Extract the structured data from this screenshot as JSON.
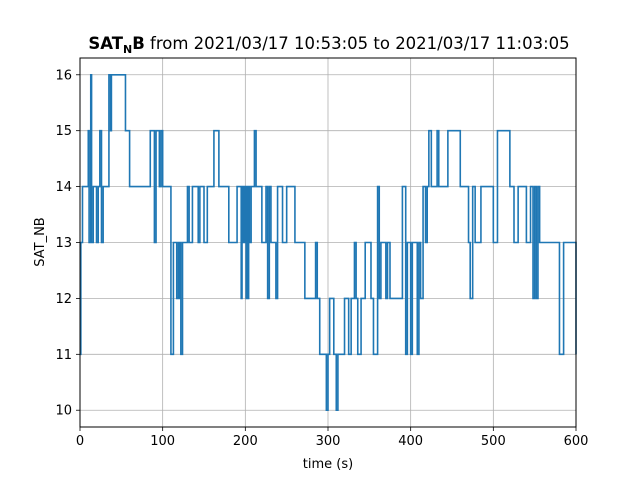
{
  "chart_data": {
    "type": "line",
    "title": {
      "bold": "SAT",
      "bold_sub": "N",
      "bold_tail": "B",
      "rest": " from 2021/03/17 10:53:05 to 2021/03/17 11:03:05"
    },
    "xlabel": "time (s)",
    "ylabel": "SAT_NB",
    "xlim": [
      0,
      600
    ],
    "ylim": [
      9.7,
      16.3
    ],
    "xticks": [
      0,
      100,
      200,
      300,
      400,
      500,
      600
    ],
    "yticks": [
      10,
      11,
      12,
      13,
      14,
      15,
      16
    ],
    "grid": true,
    "line_color": "#1f77b4",
    "series": [
      {
        "step": "post",
        "x": [
          0,
          1,
          3,
          6,
          10,
          11,
          13,
          14,
          16,
          18,
          20,
          22,
          24,
          26,
          28,
          29,
          31,
          33,
          35,
          37,
          38,
          40,
          43,
          48,
          50,
          55,
          60,
          65,
          66,
          78,
          85,
          90,
          92,
          96,
          98,
          100,
          105,
          110,
          113,
          117,
          119,
          120,
          121,
          122,
          124,
          126,
          130,
          132,
          136,
          140,
          143,
          145,
          147,
          150,
          154,
          158,
          162,
          168,
          172,
          174,
          180,
          185,
          190,
          194,
          195,
          196,
          197,
          198,
          199,
          200,
          201,
          202,
          203,
          204,
          205,
          207,
          211,
          213,
          215,
          217,
          220,
          225,
          227,
          229,
          231,
          235,
          237,
          239,
          242,
          245,
          250,
          255,
          260,
          268,
          272,
          278,
          285,
          287,
          290,
          295,
          298,
          300,
          302,
          304,
          307,
          310,
          312,
          314,
          316,
          320,
          325,
          328,
          330,
          332,
          334,
          336,
          340,
          342,
          345,
          350,
          352,
          355,
          358,
          360,
          362,
          364,
          367,
          370,
          372,
          375,
          380,
          385,
          390,
          392,
          394,
          396,
          398,
          400,
          402,
          404,
          408,
          410,
          412,
          415,
          418,
          420,
          422,
          425,
          430,
          432,
          434,
          436,
          440,
          445,
          450,
          455,
          460,
          465,
          470,
          472,
          475,
          478,
          480,
          485,
          490,
          495,
          500,
          505,
          510,
          515,
          520,
          525,
          530,
          535,
          540,
          545,
          548,
          550,
          552,
          554,
          556,
          558,
          560,
          562,
          565,
          570,
          575,
          580,
          585,
          590,
          595,
          600
        ],
        "values": [
          11,
          13,
          14,
          14,
          15,
          13,
          16,
          13,
          14,
          14,
          13,
          14,
          15,
          13,
          14,
          14,
          14,
          14,
          16,
          15,
          16,
          16,
          16,
          16,
          16,
          15,
          14,
          14,
          14,
          14,
          15,
          13,
          15,
          14,
          15,
          14,
          14,
          11,
          13,
          12,
          13,
          12,
          13,
          11,
          13,
          13,
          14,
          13,
          14,
          14,
          13,
          14,
          14,
          13,
          14,
          14,
          15,
          14,
          14,
          14,
          13,
          13,
          14,
          14,
          12,
          14,
          13,
          14,
          13,
          14,
          12,
          14,
          12,
          14,
          13,
          14,
          15,
          14,
          14,
          14,
          13,
          14,
          12,
          14,
          13,
          13,
          12,
          14,
          14,
          13,
          14,
          14,
          13,
          13,
          12,
          12,
          13,
          12,
          11,
          11,
          10,
          11,
          12,
          12,
          11,
          10,
          11,
          11,
          11,
          12,
          11,
          12,
          12,
          13,
          12,
          11,
          12,
          12,
          13,
          13,
          12,
          11,
          11,
          14,
          12,
          13,
          13,
          12,
          13,
          12,
          12,
          12,
          14,
          14,
          11,
          13,
          13,
          11,
          13,
          13,
          11,
          13,
          12,
          14,
          13,
          14,
          15,
          14,
          14,
          15,
          14,
          14,
          14,
          15,
          15,
          15,
          14,
          14,
          13,
          12,
          14,
          13,
          13,
          14,
          14,
          14,
          13,
          15,
          15,
          15,
          14,
          13,
          14,
          14,
          13,
          14,
          12,
          14,
          12,
          14,
          13,
          13,
          13,
          13,
          13,
          13,
          13,
          11,
          13,
          13,
          13,
          11
        ]
      }
    ]
  }
}
